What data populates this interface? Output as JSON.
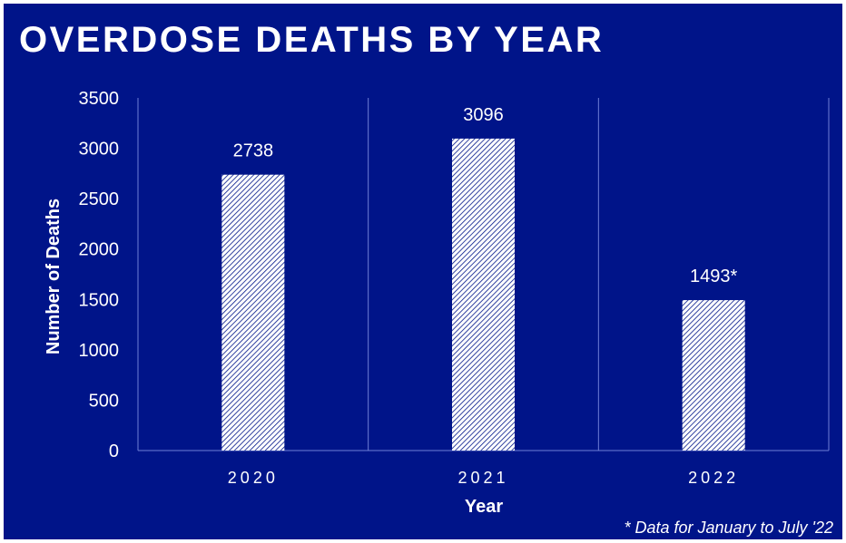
{
  "title": "OVERDOSE DEATHS BY YEAR",
  "footnote": "* Data for January to July '22",
  "colors": {
    "background": "#001489",
    "text": "#ffffff",
    "grid": "#6f7fd6",
    "bar_fill": "#ffffff",
    "bar_hatch": "#001489"
  },
  "chart_data": {
    "type": "bar",
    "categories": [
      "2020",
      "2021",
      "2022"
    ],
    "values": [
      2738,
      3096,
      1493
    ],
    "data_labels": [
      "2738",
      "3096",
      "1493*"
    ],
    "xlabel": "Year",
    "ylabel": "Number of Deaths",
    "ylim": [
      0,
      3500
    ],
    "yticks": [
      0,
      500,
      1000,
      1500,
      2000,
      2500,
      3000,
      3500
    ],
    "bar_pattern": "diagonal-hatch",
    "grid": "vertical category separators"
  }
}
